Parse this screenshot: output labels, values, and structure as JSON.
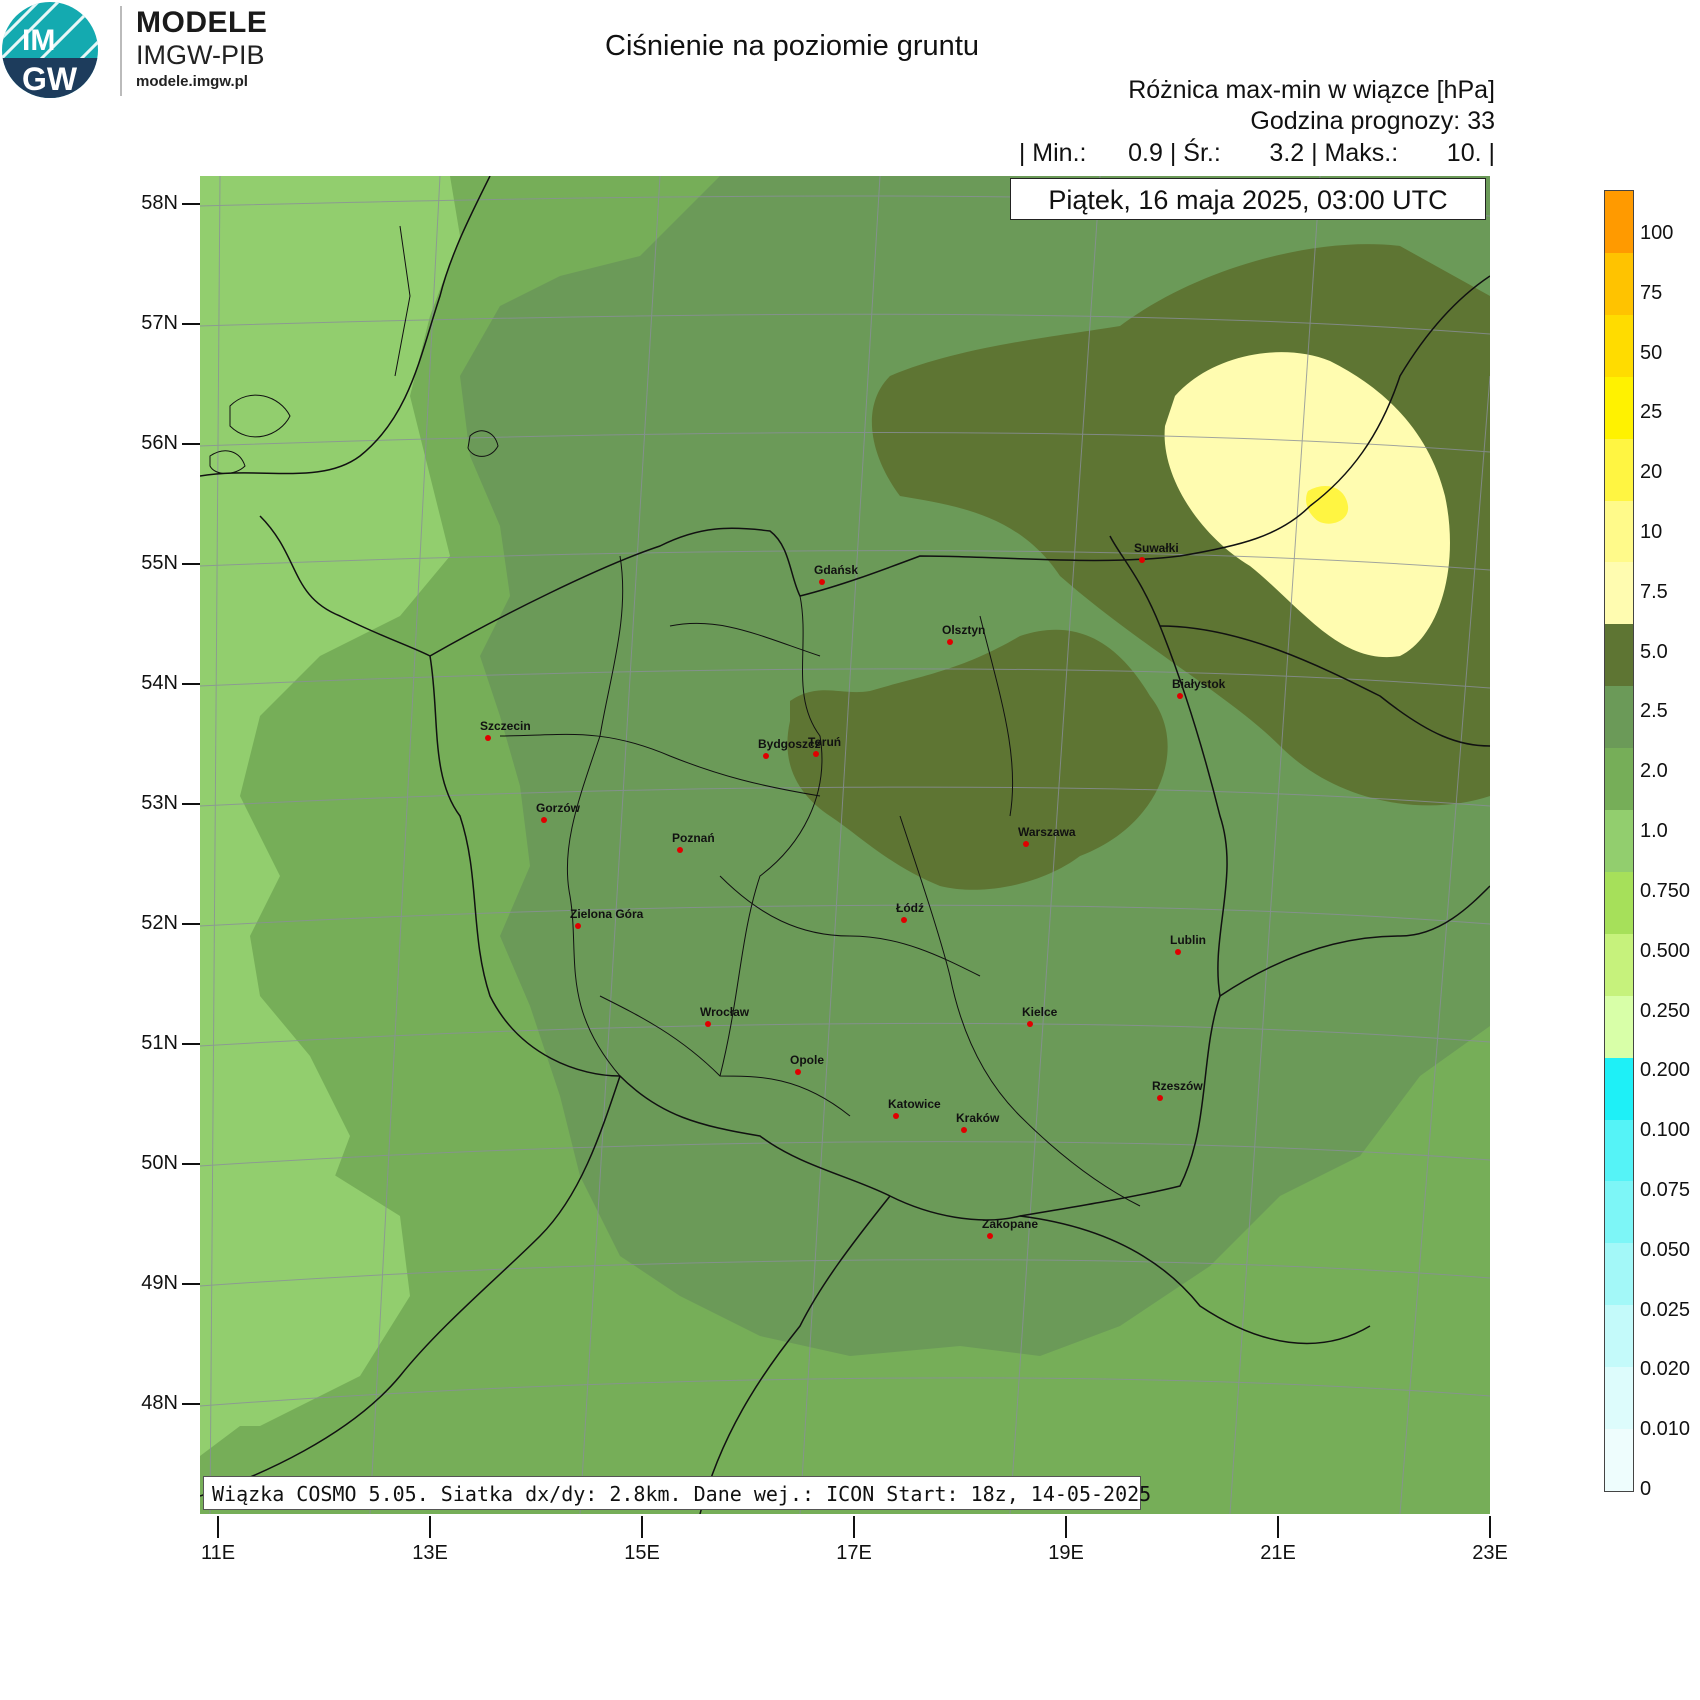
{
  "logo": {
    "circle_text_top": "IM",
    "circle_text_bottom": "GW",
    "brand_title": "MODELE",
    "brand_sub": "IMGW-PIB",
    "brand_url": "modele.imgw.pl"
  },
  "header": {
    "title": "Ciśnienie na poziomie gruntu",
    "subtitle": "Różnica max-min w wiązce [hPa]",
    "forecast_hour": "Godzina prognozy: 33",
    "stats": "| Min.:      0.9 | Śr.:       3.2 | Maks.:       10. |",
    "date": "Piątek, 16 maja 2025, 03:00 UTC"
  },
  "footer": "Wiązka COSMO 5.05. Siatka dx/dy: 2.8km. Dane wej.: ICON Start: 18z, 14-05-2025",
  "axes": {
    "lat_labels": [
      "58N",
      "57N",
      "56N",
      "55N",
      "54N",
      "53N",
      "52N",
      "51N",
      "50N",
      "49N",
      "48N"
    ],
    "lon_labels": [
      "11E",
      "13E",
      "15E",
      "17E",
      "19E",
      "21E",
      "23E"
    ]
  },
  "cities": [
    {
      "name": "Gdańsk"
    },
    {
      "name": "Olsztyn"
    },
    {
      "name": "Suwałki"
    },
    {
      "name": "Białystok"
    },
    {
      "name": "Szczecin"
    },
    {
      "name": "Bydgoszcz"
    },
    {
      "name": "Toruń"
    },
    {
      "name": "Gorzów"
    },
    {
      "name": "Poznań"
    },
    {
      "name": "Warszawa"
    },
    {
      "name": "Zielona Góra"
    },
    {
      "name": "Łódź"
    },
    {
      "name": "Lublin"
    },
    {
      "name": "Wrocław"
    },
    {
      "name": "Kielce"
    },
    {
      "name": "Opole"
    },
    {
      "name": "Rzeszów"
    },
    {
      "name": "Katowice"
    },
    {
      "name": "Kraków"
    },
    {
      "name": "Zakopane"
    }
  ],
  "legend": {
    "labels": [
      "100",
      "75",
      "50",
      "25",
      "20",
      "10",
      "7.5",
      "5.0",
      "2.5",
      "2.0",
      "1.0",
      "0.750",
      "0.500",
      "0.250",
      "0.200",
      "0.100",
      "0.075",
      "0.050",
      "0.025",
      "0.020",
      "0.010",
      "0"
    ],
    "colors": [
      "#ff9a00",
      "#ffc300",
      "#ffdc00",
      "#fff200",
      "#fff542",
      "#fffa8a",
      "#fffcb0",
      "#5e7533",
      "#6b9a58",
      "#76ae58",
      "#92ce6e",
      "#a6e05a",
      "#c6f27c",
      "#d8ffa8",
      "#1ef0f7",
      "#55f3f7",
      "#7df6f7",
      "#a3f8f8",
      "#c4fafa",
      "#ddfcfc",
      "#eefdfd",
      "#ffffff"
    ]
  }
}
